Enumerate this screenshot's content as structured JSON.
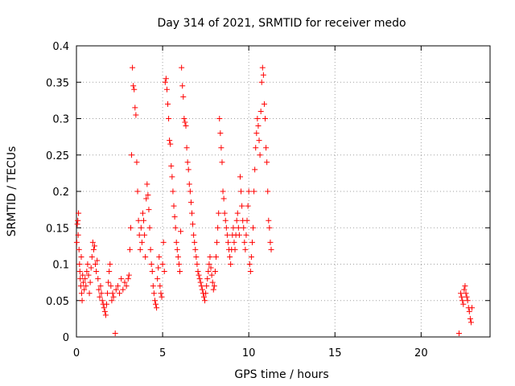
{
  "chart_data": {
    "type": "scatter",
    "title": "Day 314 of 2021, SRMTID for receiver medo",
    "xlabel": "GPS time / hours",
    "ylabel": "SRMTID / TECUs",
    "xlim": [
      0,
      24
    ],
    "ylim": [
      0,
      0.4
    ],
    "x_ticks": [
      0,
      5,
      10,
      15,
      20
    ],
    "y_ticks": [
      0,
      0.05,
      0.1,
      0.15,
      0.2,
      0.25,
      0.3,
      0.35,
      0.4
    ],
    "x_tick_labels": [
      "0",
      "5",
      "10",
      "15",
      "20"
    ],
    "y_tick_labels": [
      "0",
      "0.05",
      "0.1",
      "0.15",
      "0.2",
      "0.25",
      "0.3",
      "0.35",
      "0.4"
    ],
    "grid": true,
    "marker": "+",
    "colors": {
      "series": "#ff0000",
      "grid": "#a0a0a0",
      "axis": "#000000"
    },
    "series": [
      {
        "points": [
          [
            0.02,
            0.13
          ],
          [
            0.05,
            0.155
          ],
          [
            0.08,
            0.16
          ],
          [
            0.1,
            0.14
          ],
          [
            0.12,
            0.17
          ],
          [
            0.15,
            0.12
          ],
          [
            0.18,
            0.1
          ],
          [
            0.2,
            0.09
          ],
          [
            0.22,
            0.08
          ],
          [
            0.25,
            0.07
          ],
          [
            0.28,
            0.11
          ],
          [
            0.3,
            0.06
          ],
          [
            0.33,
            0.05
          ],
          [
            0.36,
            0.085
          ],
          [
            0.4,
            0.075
          ],
          [
            0.45,
            0.065
          ],
          [
            0.5,
            0.08
          ],
          [
            0.55,
            0.07
          ],
          [
            0.6,
            0.09
          ],
          [
            0.65,
            0.1
          ],
          [
            0.7,
            0.085
          ],
          [
            0.75,
            0.06
          ],
          [
            0.8,
            0.075
          ],
          [
            0.85,
            0.095
          ],
          [
            0.9,
            0.11
          ],
          [
            0.95,
            0.13
          ],
          [
            1.0,
            0.12
          ],
          [
            1.05,
            0.125
          ],
          [
            1.1,
            0.1
          ],
          [
            1.15,
            0.09
          ],
          [
            1.2,
            0.105
          ],
          [
            1.25,
            0.08
          ],
          [
            1.3,
            0.065
          ],
          [
            1.35,
            0.055
          ],
          [
            1.4,
            0.07
          ],
          [
            1.45,
            0.06
          ],
          [
            1.5,
            0.05
          ],
          [
            1.55,
            0.045
          ],
          [
            1.6,
            0.04
          ],
          [
            1.65,
            0.035
          ],
          [
            1.7,
            0.03
          ],
          [
            1.75,
            0.045
          ],
          [
            1.8,
            0.06
          ],
          [
            1.85,
            0.075
          ],
          [
            1.9,
            0.09
          ],
          [
            1.95,
            0.1
          ],
          [
            2.0,
            0.07
          ],
          [
            2.05,
            0.05
          ],
          [
            2.1,
            0.06
          ],
          [
            2.15,
            0.055
          ],
          [
            2.25,
            0.005
          ],
          [
            2.3,
            0.065
          ],
          [
            2.4,
            0.07
          ],
          [
            2.5,
            0.06
          ],
          [
            2.6,
            0.08
          ],
          [
            2.7,
            0.065
          ],
          [
            2.8,
            0.075
          ],
          [
            2.9,
            0.07
          ],
          [
            3.0,
            0.08
          ],
          [
            3.05,
            0.085
          ],
          [
            3.1,
            0.12
          ],
          [
            3.15,
            0.15
          ],
          [
            3.2,
            0.25
          ],
          [
            3.25,
            0.37
          ],
          [
            3.3,
            0.345
          ],
          [
            3.35,
            0.34
          ],
          [
            3.4,
            0.315
          ],
          [
            3.45,
            0.305
          ],
          [
            3.5,
            0.24
          ],
          [
            3.55,
            0.2
          ],
          [
            3.6,
            0.16
          ],
          [
            3.65,
            0.14
          ],
          [
            3.7,
            0.12
          ],
          [
            3.75,
            0.15
          ],
          [
            3.8,
            0.13
          ],
          [
            3.85,
            0.17
          ],
          [
            3.9,
            0.16
          ],
          [
            3.95,
            0.14
          ],
          [
            4.0,
            0.11
          ],
          [
            4.05,
            0.19
          ],
          [
            4.1,
            0.21
          ],
          [
            4.15,
            0.195
          ],
          [
            4.2,
            0.175
          ],
          [
            4.25,
            0.15
          ],
          [
            4.3,
            0.12
          ],
          [
            4.35,
            0.1
          ],
          [
            4.4,
            0.09
          ],
          [
            4.45,
            0.07
          ],
          [
            4.5,
            0.06
          ],
          [
            4.55,
            0.05
          ],
          [
            4.6,
            0.045
          ],
          [
            4.65,
            0.04
          ],
          [
            4.7,
            0.08
          ],
          [
            4.75,
            0.095
          ],
          [
            4.8,
            0.11
          ],
          [
            4.85,
            0.07
          ],
          [
            4.9,
            0.06
          ],
          [
            4.95,
            0.055
          ],
          [
            5.0,
            0.1
          ],
          [
            5.05,
            0.13
          ],
          [
            5.1,
            0.09
          ],
          [
            5.15,
            0.35
          ],
          [
            5.2,
            0.355
          ],
          [
            5.25,
            0.34
          ],
          [
            5.3,
            0.32
          ],
          [
            5.35,
            0.3
          ],
          [
            5.4,
            0.27
          ],
          [
            5.45,
            0.265
          ],
          [
            5.5,
            0.235
          ],
          [
            5.55,
            0.22
          ],
          [
            5.6,
            0.2
          ],
          [
            5.65,
            0.18
          ],
          [
            5.7,
            0.165
          ],
          [
            5.75,
            0.15
          ],
          [
            5.8,
            0.13
          ],
          [
            5.85,
            0.12
          ],
          [
            5.9,
            0.11
          ],
          [
            5.95,
            0.1
          ],
          [
            6.0,
            0.09
          ],
          [
            6.05,
            0.145
          ],
          [
            6.1,
            0.37
          ],
          [
            6.15,
            0.345
          ],
          [
            6.2,
            0.33
          ],
          [
            6.25,
            0.3
          ],
          [
            6.3,
            0.295
          ],
          [
            6.35,
            0.29
          ],
          [
            6.4,
            0.26
          ],
          [
            6.45,
            0.24
          ],
          [
            6.5,
            0.23
          ],
          [
            6.55,
            0.21
          ],
          [
            6.6,
            0.2
          ],
          [
            6.65,
            0.185
          ],
          [
            6.7,
            0.17
          ],
          [
            6.75,
            0.155
          ],
          [
            6.8,
            0.14
          ],
          [
            6.85,
            0.13
          ],
          [
            6.9,
            0.12
          ],
          [
            6.95,
            0.11
          ],
          [
            7.0,
            0.1
          ],
          [
            7.05,
            0.09
          ],
          [
            7.1,
            0.085
          ],
          [
            7.15,
            0.08
          ],
          [
            7.2,
            0.075
          ],
          [
            7.25,
            0.07
          ],
          [
            7.3,
            0.065
          ],
          [
            7.35,
            0.06
          ],
          [
            7.4,
            0.055
          ],
          [
            7.45,
            0.05
          ],
          [
            7.5,
            0.06
          ],
          [
            7.55,
            0.07
          ],
          [
            7.6,
            0.08
          ],
          [
            7.65,
            0.09
          ],
          [
            7.7,
            0.1
          ],
          [
            7.75,
            0.11
          ],
          [
            7.8,
            0.095
          ],
          [
            7.85,
            0.085
          ],
          [
            7.9,
            0.075
          ],
          [
            7.95,
            0.065
          ],
          [
            8.0,
            0.07
          ],
          [
            8.05,
            0.09
          ],
          [
            8.1,
            0.11
          ],
          [
            8.15,
            0.13
          ],
          [
            8.2,
            0.15
          ],
          [
            8.25,
            0.17
          ],
          [
            8.3,
            0.3
          ],
          [
            8.35,
            0.28
          ],
          [
            8.4,
            0.26
          ],
          [
            8.45,
            0.24
          ],
          [
            8.5,
            0.2
          ],
          [
            8.55,
            0.19
          ],
          [
            8.6,
            0.17
          ],
          [
            8.65,
            0.16
          ],
          [
            8.7,
            0.15
          ],
          [
            8.75,
            0.14
          ],
          [
            8.8,
            0.13
          ],
          [
            8.85,
            0.12
          ],
          [
            8.9,
            0.11
          ],
          [
            8.95,
            0.1
          ],
          [
            9.0,
            0.12
          ],
          [
            9.05,
            0.14
          ],
          [
            9.1,
            0.15
          ],
          [
            9.15,
            0.13
          ],
          [
            9.2,
            0.12
          ],
          [
            9.25,
            0.14
          ],
          [
            9.3,
            0.16
          ],
          [
            9.35,
            0.17
          ],
          [
            9.4,
            0.15
          ],
          [
            9.45,
            0.14
          ],
          [
            9.5,
            0.22
          ],
          [
            9.55,
            0.2
          ],
          [
            9.6,
            0.18
          ],
          [
            9.65,
            0.16
          ],
          [
            9.7,
            0.15
          ],
          [
            9.75,
            0.13
          ],
          [
            9.8,
            0.12
          ],
          [
            9.85,
            0.14
          ],
          [
            9.9,
            0.16
          ],
          [
            9.95,
            0.18
          ],
          [
            10.0,
            0.2
          ],
          [
            10.05,
            0.1
          ],
          [
            10.1,
            0.09
          ],
          [
            10.15,
            0.11
          ],
          [
            10.2,
            0.13
          ],
          [
            10.25,
            0.15
          ],
          [
            10.3,
            0.2
          ],
          [
            10.35,
            0.23
          ],
          [
            10.4,
            0.26
          ],
          [
            10.45,
            0.28
          ],
          [
            10.5,
            0.3
          ],
          [
            10.55,
            0.29
          ],
          [
            10.6,
            0.27
          ],
          [
            10.65,
            0.25
          ],
          [
            10.7,
            0.31
          ],
          [
            10.75,
            0.35
          ],
          [
            10.8,
            0.37
          ],
          [
            10.85,
            0.36
          ],
          [
            10.9,
            0.32
          ],
          [
            10.95,
            0.3
          ],
          [
            11.0,
            0.26
          ],
          [
            11.05,
            0.24
          ],
          [
            11.1,
            0.2
          ],
          [
            11.15,
            0.16
          ],
          [
            11.2,
            0.15
          ],
          [
            11.25,
            0.13
          ],
          [
            11.3,
            0.12
          ],
          [
            22.2,
            0.005
          ],
          [
            22.3,
            0.06
          ],
          [
            22.35,
            0.055
          ],
          [
            22.4,
            0.05
          ],
          [
            22.45,
            0.045
          ],
          [
            22.5,
            0.065
          ],
          [
            22.55,
            0.07
          ],
          [
            22.6,
            0.06
          ],
          [
            22.65,
            0.055
          ],
          [
            22.7,
            0.05
          ],
          [
            22.75,
            0.04
          ],
          [
            22.8,
            0.035
          ],
          [
            22.85,
            0.025
          ],
          [
            22.9,
            0.02
          ],
          [
            22.95,
            0.04
          ]
        ]
      }
    ]
  }
}
